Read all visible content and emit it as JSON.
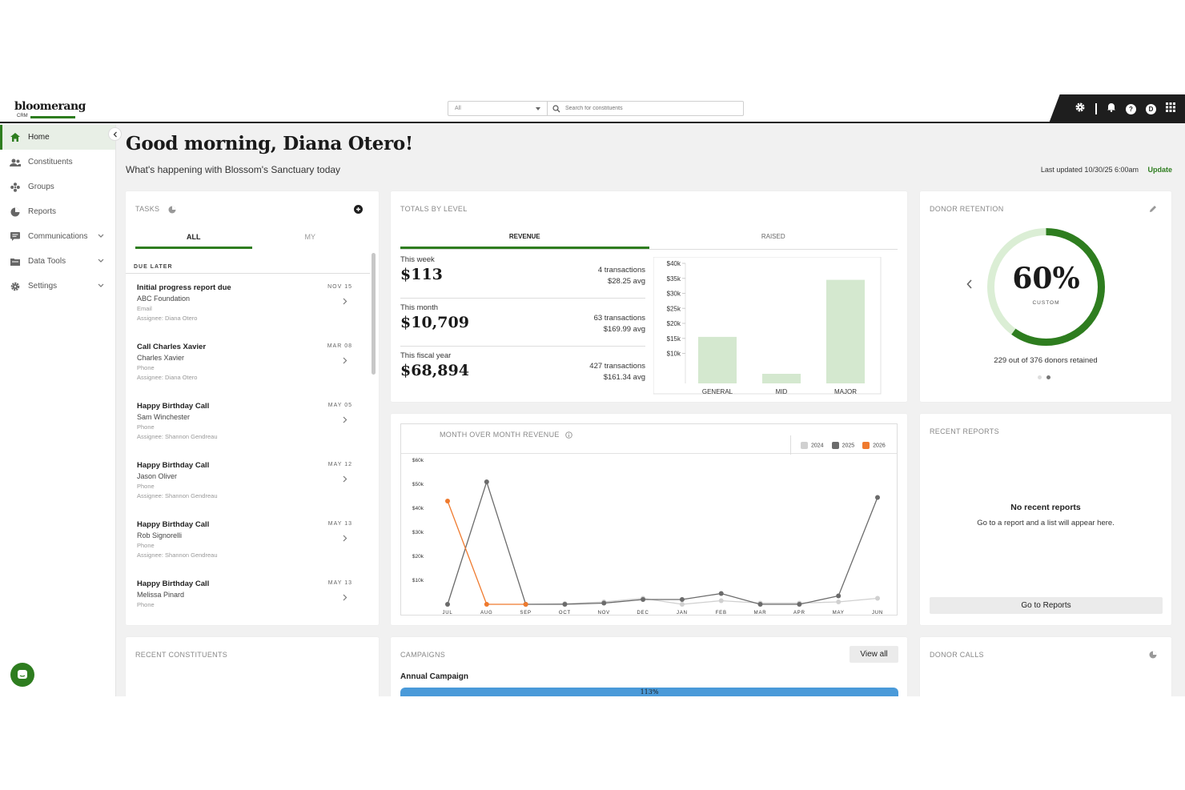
{
  "app": {
    "logo": "bloomerang",
    "logo_sub": "CRM",
    "search": {
      "scope": "All",
      "placeholder": "Search for constituents"
    },
    "user_initial": "D"
  },
  "sidebar": {
    "items": [
      {
        "label": "Home",
        "icon": "home-icon",
        "active": true
      },
      {
        "label": "Constituents",
        "icon": "people-icon"
      },
      {
        "label": "Groups",
        "icon": "groups-icon"
      },
      {
        "label": "Reports",
        "icon": "pie-chart-icon"
      },
      {
        "label": "Communications",
        "icon": "message-icon",
        "expandable": true
      },
      {
        "label": "Data Tools",
        "icon": "folder-icon",
        "expandable": true
      },
      {
        "label": "Settings",
        "icon": "gear-icon",
        "expandable": true
      }
    ]
  },
  "header": {
    "greeting": "Good morning, Diana Otero!",
    "subtitle": "What's happening with Blossom's Sanctuary today",
    "last_updated": "Last updated 10/30/25 6:00am",
    "update_label": "Update"
  },
  "tasks": {
    "title": "TASKS",
    "tabs": [
      "ALL",
      "MY"
    ],
    "group": "DUE LATER",
    "items": [
      {
        "title": "Initial progress report due",
        "who": "ABC Foundation",
        "method": "Email",
        "assignee": "Assignee: Diana Otero",
        "date": "NOV 15"
      },
      {
        "title": "Call Charles Xavier",
        "who": "Charles Xavier",
        "method": "Phone",
        "assignee": "Assignee: Diana Otero",
        "date": "MAR 08"
      },
      {
        "title": "Happy Birthday Call",
        "who": "Sam Winchester",
        "method": "Phone",
        "assignee": "Assignee: Shannon Gendreau",
        "date": "MAY 05"
      },
      {
        "title": "Happy Birthday Call",
        "who": "Jason Oliver",
        "method": "Phone",
        "assignee": "Assignee: Shannon Gendreau",
        "date": "MAY 12"
      },
      {
        "title": "Happy Birthday Call",
        "who": "Rob Signorelli",
        "method": "Phone",
        "assignee": "Assignee: Shannon Gendreau",
        "date": "MAY 13"
      },
      {
        "title": "Happy Birthday Call",
        "who": "Melissa Pinard",
        "method": "Phone",
        "assignee": "",
        "date": "MAY 13"
      }
    ]
  },
  "totals": {
    "title": "TOTALS BY LEVEL",
    "tabs": [
      "REVENUE",
      "RAISED"
    ],
    "periods": [
      {
        "label": "This week",
        "value": "$113",
        "transactions": "4 transactions",
        "avg": "$28.25 avg"
      },
      {
        "label": "This month",
        "value": "$10,709",
        "transactions": "63 transactions",
        "avg": "$169.99 avg"
      },
      {
        "label": "This fiscal year",
        "value": "$68,894",
        "transactions": "427 transactions",
        "avg": "$161.34 avg"
      }
    ]
  },
  "retention": {
    "title": "DONOR RETENTION",
    "percent": "60%",
    "percent_value": 60,
    "mode": "CUSTOM",
    "summary": "229 out of 376 donors retained",
    "page_index": 1,
    "page_count": 2
  },
  "mom": {
    "title": "MONTH OVER MONTH REVENUE"
  },
  "recent_reports": {
    "title": "RECENT REPORTS",
    "empty_title": "No recent reports",
    "empty_text": "Go to a report and a list will appear here.",
    "button": "Go to Reports"
  },
  "recent_constituents": {
    "title": "RECENT CONSTITUENTS"
  },
  "campaigns": {
    "title": "CAMPAIGNS",
    "view_all": "View all",
    "campaign_name": "Annual Campaign",
    "progress_label": "113%",
    "progress_value": 113
  },
  "donor_calls": {
    "title": "DONOR CALLS"
  },
  "colors": {
    "accent": "#2e7d1f",
    "bar": "#d4e8cf",
    "ring_light": "#dbeed5",
    "series_2024": "#d0d0d0",
    "series_2025": "#6b6b6b",
    "series_2026": "#ef7a2e",
    "progress": "#4a9ad9"
  },
  "chart_data": [
    {
      "type": "bar",
      "categories": [
        "GENERAL",
        "MID",
        "MAJOR"
      ],
      "values": [
        15500,
        3200,
        34500
      ],
      "ylim": [
        0,
        40000
      ],
      "yticks": [
        "$10k",
        "$15k",
        "$20k",
        "$25k",
        "$30k",
        "$35k",
        "$40k"
      ],
      "ytick_values": [
        10000,
        15000,
        20000,
        25000,
        30000,
        35000,
        40000
      ]
    },
    {
      "type": "line",
      "categories": [
        "JUL",
        "AUG",
        "SEP",
        "OCT",
        "NOV",
        "DEC",
        "JAN",
        "FEB",
        "MAR",
        "APR",
        "MAY",
        "JUN"
      ],
      "ylim": [
        0,
        60000
      ],
      "yticks": [
        "$10k",
        "$20k",
        "$30k",
        "$40k",
        "$50k",
        "$60k"
      ],
      "ytick_values": [
        10000,
        20000,
        30000,
        40000,
        50000,
        60000
      ],
      "legend": "top-right",
      "series": [
        {
          "name": "2024",
          "values": [
            null,
            null,
            0,
            300,
            1000,
            2500,
            0,
            1500,
            500,
            500,
            1000,
            2500
          ]
        },
        {
          "name": "2025",
          "values": [
            0,
            51000,
            0,
            0,
            500,
            2000,
            2000,
            4500,
            0,
            0,
            3500,
            44500
          ]
        },
        {
          "name": "2026",
          "values": [
            43000,
            0,
            0,
            null,
            null,
            null,
            null,
            null,
            null,
            null,
            null,
            null
          ]
        }
      ]
    }
  ]
}
